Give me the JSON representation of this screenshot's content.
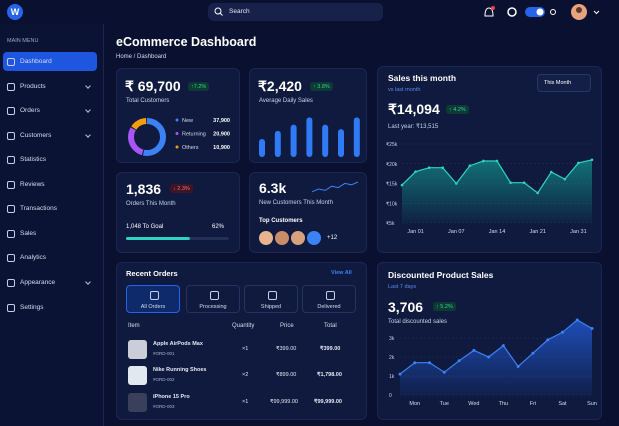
{
  "topbar": {
    "logo": "W",
    "search": "Search"
  },
  "sidebar": {
    "section": "MAIN MENU",
    "items": [
      "Dashboard",
      "Products",
      "Orders",
      "Customers",
      "Statistics",
      "Reviews",
      "Transactions",
      "Sales",
      "Analytics",
      "Appearance",
      "Settings"
    ]
  },
  "header": {
    "title": "eCommerce Dashboard",
    "breadcrumb": "Home / Dashboard"
  },
  "total_customers": {
    "value": "₹ 69,700",
    "change": "↑7.2%",
    "label": "Total Customers",
    "breakdown": {
      "type": "pie",
      "categories": [
        "New",
        "Returning",
        "Others"
      ],
      "values": [
        37900,
        20900,
        10900
      ],
      "value_labels": [
        "37,900",
        "20,900",
        "10,900"
      ],
      "colors": [
        "#3b82f6",
        "#a855f7",
        "#f59e0b"
      ]
    }
  },
  "average_daily_sales": {
    "value": "₹2,420",
    "change": "↑ 3.8%",
    "label": "Average Daily Sales",
    "chart": {
      "type": "bar",
      "values": [
        40,
        58,
        72,
        88,
        72,
        62,
        88
      ],
      "color": "#2f7bf5"
    }
  },
  "orders_this_month": {
    "value": "1,836",
    "change": "↓ 2.3%",
    "label": "Orders This Month",
    "goal": "1,048 To Goal",
    "progress": {
      "type": "progress",
      "value": 62,
      "value_label": "62%",
      "color": "#2dd4bf"
    }
  },
  "new_customers": {
    "value": "6.3k",
    "label": "New Customers This Month",
    "top_customers": "Top Customers",
    "more": "+12",
    "trend": {
      "type": "line",
      "values": [
        3,
        5,
        4,
        7,
        6,
        9,
        8,
        10
      ],
      "color": "#3b82f6"
    }
  },
  "sales_this_month": {
    "title": "Sales this month",
    "subtitle": "vs last month",
    "period": "This Month",
    "value": "₹14,094",
    "change": "↑ 4.2%",
    "last_year": "Last year: ₹13,515",
    "chart": {
      "type": "area",
      "categories": [
        null,
        "Jan 01",
        null,
        null,
        "Jan 07",
        null,
        null,
        "Jan 14",
        null,
        null,
        "Jan 21",
        null,
        null,
        "Jan 31",
        null
      ],
      "values": [
        14600,
        18000,
        19000,
        19000,
        15000,
        19500,
        20700,
        20700,
        15200,
        15200,
        12600,
        17900,
        16100,
        20200,
        21000
      ],
      "color": "#2dd4bf",
      "ylim": [
        5000,
        25000
      ],
      "yticks": [
        {
          "value": 5000,
          "label": "₹5k"
        },
        {
          "value": 10000,
          "label": "₹10k"
        },
        {
          "value": 15000,
          "label": "₹15k"
        },
        {
          "value": 20000,
          "label": "₹20k"
        },
        {
          "value": 25000,
          "label": "₹25k"
        }
      ],
      "grid": true
    }
  },
  "recent_orders": {
    "title": "Recent Orders",
    "view_all": "View All",
    "tabs": [
      "All Orders",
      "Processing",
      "Shipped",
      "Delivered"
    ],
    "columns": [
      "Item",
      "Quantity",
      "Price",
      "Total"
    ],
    "rows": [
      {
        "name": "Apple AirPods Max",
        "id": "#ORD-001",
        "quantity": "×1",
        "price": "₹399.00",
        "total": "₹399.00"
      },
      {
        "name": "Nike Running Shoes",
        "id": "#ORD-002",
        "quantity": "×2",
        "price": "₹899.00",
        "total": "₹1,798.00"
      },
      {
        "name": "iPhone 15 Pro",
        "id": "#ORD-003",
        "quantity": "×1",
        "price": "₹99,999.00",
        "total": "₹99,999.00"
      }
    ]
  },
  "discounted_sales": {
    "title": "Discounted Product Sales",
    "subtitle": "Last 7 days",
    "value": "3,706",
    "change": "↑ 5.2%",
    "label": "Total discounted sales",
    "chart": {
      "type": "area",
      "categories": [
        null,
        "Mon",
        null,
        "Tue",
        null,
        "Wed",
        null,
        "Thu",
        null,
        "Fri",
        null,
        "Sat",
        null,
        "Sun"
      ],
      "values": [
        1100,
        1700,
        1700,
        1200,
        1800,
        2350,
        2000,
        2600,
        1500,
        2200,
        2900,
        3300,
        3950,
        3500
      ],
      "color": "#3b82f6",
      "ylim": [
        0,
        4200
      ],
      "yticks": [
        {
          "value": 0,
          "label": "0"
        },
        {
          "value": 1000,
          "label": "1k"
        },
        {
          "value": 2000,
          "label": "2k"
        },
        {
          "value": 3000,
          "label": "3k"
        }
      ],
      "grid": true
    }
  }
}
